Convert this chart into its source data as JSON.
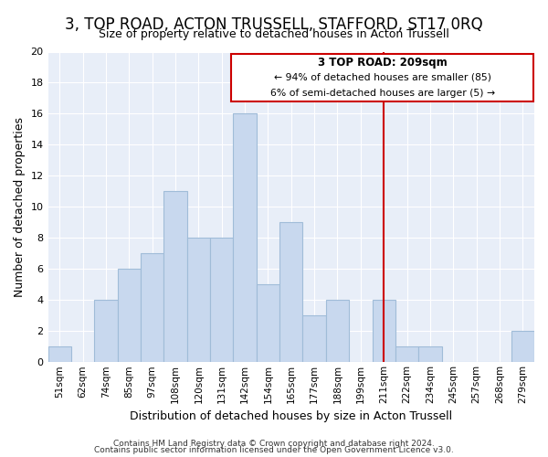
{
  "title": "3, TOP ROAD, ACTON TRUSSELL, STAFFORD, ST17 0RQ",
  "subtitle": "Size of property relative to detached houses in Acton Trussell",
  "xlabel": "Distribution of detached houses by size in Acton Trussell",
  "ylabel": "Number of detached properties",
  "footer1": "Contains HM Land Registry data © Crown copyright and database right 2024.",
  "footer2": "Contains public sector information licensed under the Open Government Licence v3.0.",
  "categories": [
    "51sqm",
    "62sqm",
    "74sqm",
    "85sqm",
    "97sqm",
    "108sqm",
    "120sqm",
    "131sqm",
    "142sqm",
    "154sqm",
    "165sqm",
    "177sqm",
    "188sqm",
    "199sqm",
    "211sqm",
    "222sqm",
    "234sqm",
    "245sqm",
    "257sqm",
    "268sqm",
    "279sqm"
  ],
  "values": [
    1,
    0,
    4,
    6,
    7,
    11,
    8,
    8,
    16,
    5,
    9,
    3,
    4,
    0,
    4,
    1,
    1,
    0,
    0,
    0,
    2
  ],
  "bar_color": "#c8d8ee",
  "bar_edge_color": "#a0bcd8",
  "subject_line_index": 14,
  "annotation_title": "3 TOP ROAD: 209sqm",
  "annotation_line1": "← 94% of detached houses are smaller (85)",
  "annotation_line2": "6% of semi-detached houses are larger (5) →",
  "annotation_box_color": "#ffffff",
  "annotation_border_color": "#cc0000",
  "subject_line_color": "#cc0000",
  "ylim": [
    0,
    20
  ],
  "yticks": [
    0,
    2,
    4,
    6,
    8,
    10,
    12,
    14,
    16,
    18,
    20
  ],
  "fig_background_color": "#ffffff",
  "plot_background_color": "#e8eef8",
  "grid_color": "#ffffff",
  "title_fontsize": 12,
  "subtitle_fontsize": 9
}
